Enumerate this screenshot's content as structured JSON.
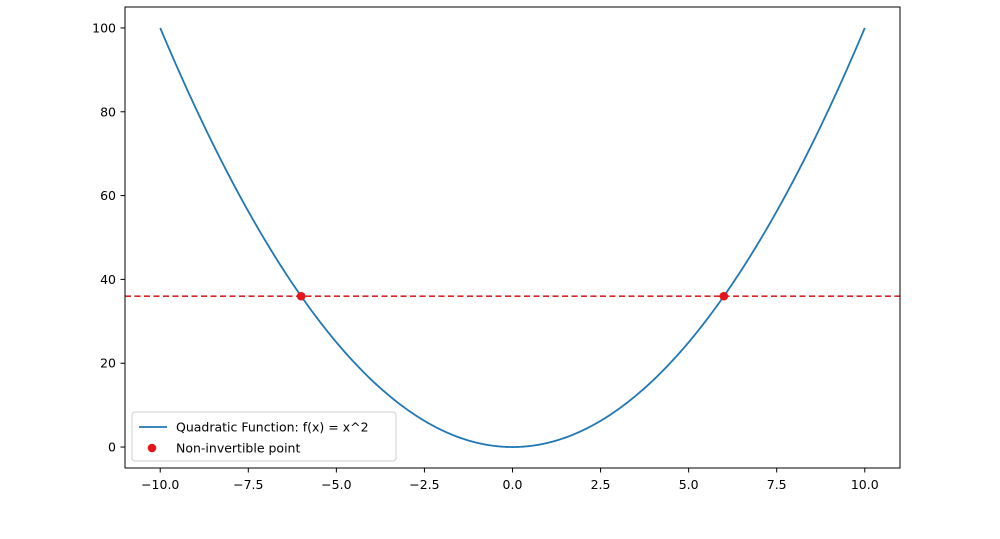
{
  "chart_data": {
    "type": "line",
    "title": "",
    "xlabel": "",
    "ylabel": "",
    "xlim": [
      -11,
      11
    ],
    "ylim": [
      -5,
      105
    ],
    "x_ticks": [
      {
        "value": -10,
        "label": "−10.0"
      },
      {
        "value": -7.5,
        "label": "−7.5"
      },
      {
        "value": -5,
        "label": "−5.0"
      },
      {
        "value": -2.5,
        "label": "−2.5"
      },
      {
        "value": 0,
        "label": "0.0"
      },
      {
        "value": 2.5,
        "label": "2.5"
      },
      {
        "value": 5,
        "label": "5.0"
      },
      {
        "value": 7.5,
        "label": "7.5"
      },
      {
        "value": 10,
        "label": "10.0"
      }
    ],
    "y_ticks": [
      {
        "value": 0,
        "label": "0"
      },
      {
        "value": 20,
        "label": "20"
      },
      {
        "value": 40,
        "label": "40"
      },
      {
        "value": 60,
        "label": "60"
      },
      {
        "value": 80,
        "label": "80"
      },
      {
        "value": 100,
        "label": "100"
      }
    ],
    "grid": false,
    "legend_position": "lower-left",
    "series": [
      {
        "name": "Quadratic Function: f(x) = x^2",
        "kind": "line",
        "color": "#1f77b4",
        "x": [
          -10,
          -9,
          -8,
          -7,
          -6,
          -5,
          -4,
          -3,
          -2,
          -1,
          0,
          1,
          2,
          3,
          4,
          5,
          6,
          7,
          8,
          9,
          10
        ],
        "y": [
          100,
          81,
          64,
          49,
          36,
          25,
          16,
          9,
          4,
          1,
          0,
          1,
          4,
          9,
          16,
          25,
          36,
          49,
          64,
          81,
          100
        ]
      },
      {
        "name": "Non-invertible point",
        "kind": "scatter",
        "color": "#e3171b",
        "x": [
          -6,
          6
        ],
        "y": [
          36,
          36
        ]
      }
    ],
    "reference_lines": [
      {
        "orientation": "horizontal",
        "y": 36,
        "style": "dashed",
        "color": "#d62728"
      }
    ]
  }
}
